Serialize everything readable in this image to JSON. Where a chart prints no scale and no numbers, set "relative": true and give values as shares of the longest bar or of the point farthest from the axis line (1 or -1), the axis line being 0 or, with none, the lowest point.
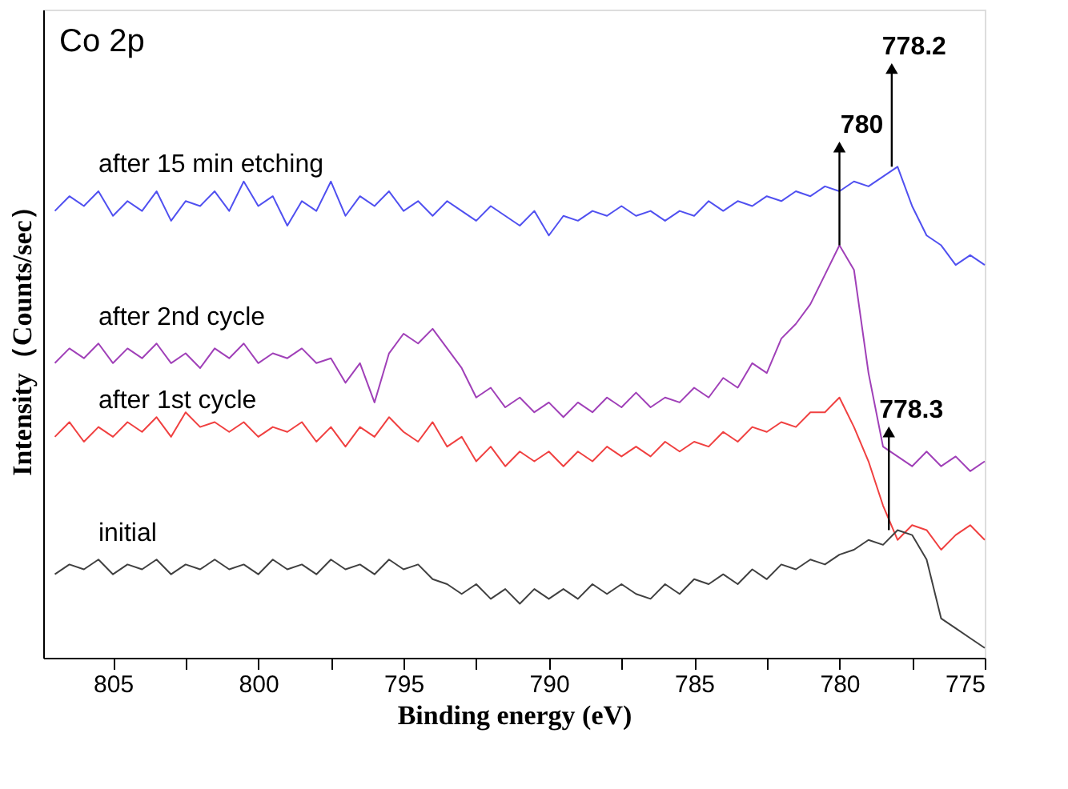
{
  "chart_data": {
    "type": "line",
    "title": "Co 2p",
    "xlabel": "Binding energy (eV)",
    "ylabel": "Intensity（Counts/sec）",
    "relative": true,
    "xlim": [
      807.4,
      775
    ],
    "xticks": [
      805,
      {
        "value": 802.5,
        "label": null
      },
      800,
      {
        "value": 797.5,
        "label": null
      },
      795,
      {
        "value": 792.5,
        "label": null
      },
      790,
      {
        "value": 787.5,
        "label": null
      },
      785,
      {
        "value": 782.5,
        "label": null
      },
      780,
      {
        "value": 777.5,
        "label": null
      },
      775
    ],
    "tick_labels": "x",
    "grid": false,
    "legend": false,
    "marker": "none",
    "line_style": "solid",
    "x": [
      807,
      806.5,
      806,
      805.5,
      805,
      804.5,
      804,
      803.5,
      803,
      802.5,
      802,
      801.5,
      801,
      800.5,
      800,
      799.5,
      799,
      798.5,
      798,
      797.5,
      797,
      796.5,
      796,
      795.5,
      795,
      794.5,
      794,
      793.5,
      793,
      792.5,
      792,
      791.5,
      791,
      790.5,
      790,
      789.5,
      789,
      788.5,
      788,
      787.5,
      787,
      786.5,
      786,
      785.5,
      785,
      784.5,
      784,
      783.5,
      783,
      782.5,
      782,
      781.5,
      781,
      780.5,
      780,
      779.5,
      779,
      778.5,
      778,
      777.5,
      777,
      776.5,
      776,
      775.5,
      775
    ],
    "series": [
      {
        "name": "after 15 min etching",
        "color": "#5050f0",
        "values": [
          0.91,
          0.94,
          0.92,
          0.95,
          0.9,
          0.93,
          0.91,
          0.95,
          0.89,
          0.93,
          0.92,
          0.95,
          0.91,
          0.97,
          0.92,
          0.94,
          0.88,
          0.93,
          0.91,
          0.97,
          0.9,
          0.94,
          0.92,
          0.95,
          0.91,
          0.93,
          0.9,
          0.93,
          0.91,
          0.89,
          0.92,
          0.9,
          0.88,
          0.91,
          0.86,
          0.9,
          0.89,
          0.91,
          0.9,
          0.92,
          0.9,
          0.91,
          0.89,
          0.91,
          0.9,
          0.93,
          0.91,
          0.93,
          0.92,
          0.94,
          0.93,
          0.95,
          0.94,
          0.96,
          0.95,
          0.97,
          0.96,
          0.98,
          1.0,
          0.92,
          0.86,
          0.84,
          0.8,
          0.82,
          0.8
        ]
      },
      {
        "name": "after 2nd cycle",
        "color": "#a040b8",
        "values": [
          0.6,
          0.63,
          0.61,
          0.64,
          0.6,
          0.63,
          0.61,
          0.64,
          0.6,
          0.62,
          0.59,
          0.63,
          0.61,
          0.64,
          0.6,
          0.62,
          0.61,
          0.63,
          0.6,
          0.61,
          0.56,
          0.6,
          0.52,
          0.62,
          0.66,
          0.64,
          0.67,
          0.63,
          0.59,
          0.53,
          0.55,
          0.51,
          0.53,
          0.5,
          0.52,
          0.49,
          0.52,
          0.5,
          0.53,
          0.51,
          0.54,
          0.51,
          0.53,
          0.52,
          0.55,
          0.53,
          0.57,
          0.55,
          0.6,
          0.58,
          0.65,
          0.68,
          0.72,
          0.78,
          0.84,
          0.79,
          0.58,
          0.43,
          0.41,
          0.39,
          0.42,
          0.39,
          0.41,
          0.38,
          0.4
        ]
      },
      {
        "name": "after 1st cycle",
        "color": "#f04040",
        "values": [
          0.45,
          0.48,
          0.44,
          0.47,
          0.45,
          0.48,
          0.46,
          0.49,
          0.45,
          0.5,
          0.47,
          0.48,
          0.46,
          0.48,
          0.45,
          0.47,
          0.46,
          0.48,
          0.44,
          0.47,
          0.43,
          0.47,
          0.45,
          0.49,
          0.46,
          0.44,
          0.48,
          0.43,
          0.45,
          0.4,
          0.43,
          0.39,
          0.42,
          0.4,
          0.42,
          0.39,
          0.42,
          0.4,
          0.43,
          0.41,
          0.43,
          0.41,
          0.44,
          0.42,
          0.44,
          0.43,
          0.46,
          0.44,
          0.47,
          0.46,
          0.48,
          0.47,
          0.5,
          0.5,
          0.53,
          0.47,
          0.4,
          0.31,
          0.24,
          0.27,
          0.26,
          0.22,
          0.25,
          0.27,
          0.24
        ]
      },
      {
        "name": "initial",
        "color": "#404040",
        "values": [
          0.17,
          0.19,
          0.18,
          0.2,
          0.17,
          0.19,
          0.18,
          0.2,
          0.17,
          0.19,
          0.18,
          0.2,
          0.18,
          0.19,
          0.17,
          0.2,
          0.18,
          0.19,
          0.17,
          0.2,
          0.18,
          0.19,
          0.17,
          0.2,
          0.18,
          0.19,
          0.16,
          0.15,
          0.13,
          0.15,
          0.12,
          0.14,
          0.11,
          0.14,
          0.12,
          0.14,
          0.12,
          0.15,
          0.13,
          0.15,
          0.13,
          0.12,
          0.15,
          0.13,
          0.16,
          0.15,
          0.17,
          0.15,
          0.18,
          0.16,
          0.19,
          0.18,
          0.2,
          0.19,
          0.21,
          0.22,
          0.24,
          0.23,
          0.26,
          0.25,
          0.2,
          0.08,
          0.06,
          0.04,
          0.02
        ]
      }
    ],
    "annotations": [
      {
        "text": "780",
        "x": 780,
        "y": 0.84
      },
      {
        "text": "778.2",
        "x": 778.2,
        "y": 1.0
      },
      {
        "text": "778.3",
        "x": 778.3,
        "y": 0.26
      }
    ]
  }
}
